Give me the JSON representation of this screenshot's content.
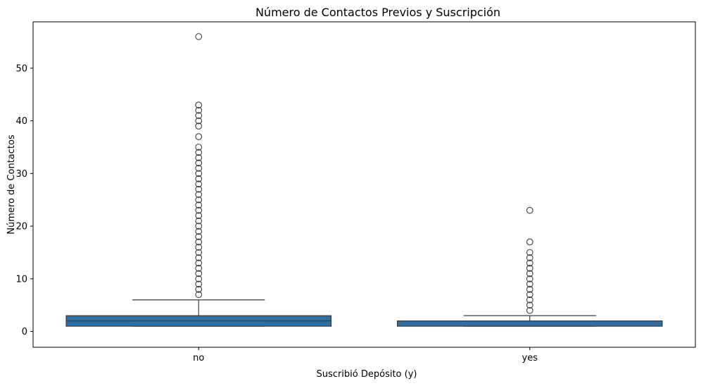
{
  "chart_data": {
    "type": "box",
    "title": "Número de Contactos Previos y Suscripción",
    "xlabel": "Suscribió Depósito (y)",
    "ylabel": "Número de Contactos",
    "ylim": [
      -3.0,
      58.8
    ],
    "yticks": [
      0,
      10,
      20,
      30,
      40,
      50
    ],
    "categories": [
      "no",
      "yes"
    ],
    "box_color": "#2f6fa3",
    "boxes": [
      {
        "category": "no",
        "whisker_low": 1,
        "q1": 1,
        "median": 2,
        "q3": 3,
        "whisker_high": 6,
        "outliers": [
          7,
          8,
          9,
          10,
          11,
          12,
          13,
          14,
          15,
          16,
          17,
          18,
          19,
          20,
          21,
          22,
          23,
          24,
          25,
          26,
          27,
          28,
          29,
          30,
          31,
          32,
          33,
          34,
          35,
          37,
          39,
          40,
          41,
          42,
          43,
          56
        ]
      },
      {
        "category": "yes",
        "whisker_low": 1,
        "q1": 1,
        "median": 2,
        "q3": 2,
        "whisker_high": 3,
        "outliers": [
          4,
          5,
          6,
          7,
          8,
          9,
          10,
          11,
          12,
          13,
          14,
          15,
          17,
          23
        ]
      }
    ]
  }
}
